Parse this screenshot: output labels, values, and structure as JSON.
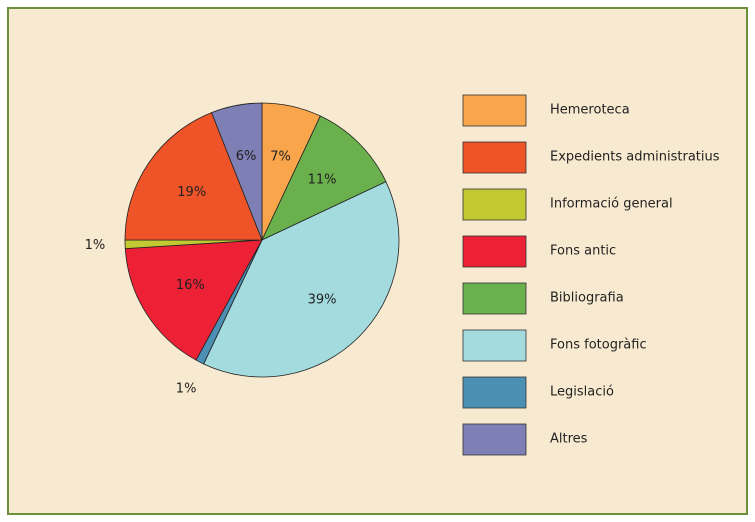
{
  "chart_data": {
    "type": "pie",
    "slices": [
      {
        "value": 7,
        "label": "7%",
        "color": "#f9a54b"
      },
      {
        "value": 11,
        "label": "11%",
        "color": "#6ab04c"
      },
      {
        "value": 39,
        "label": "39%",
        "color": "#a3dbdf"
      },
      {
        "value": 1,
        "label": "1%",
        "color": "#4b8fb3"
      },
      {
        "value": 16,
        "label": "16%",
        "color": "#ed2136"
      },
      {
        "value": 1,
        "label": "1%",
        "color": "#c3c932"
      },
      {
        "value": 19,
        "label": "19%",
        "color": "#ef5429"
      },
      {
        "value": 6,
        "label": "6%",
        "color": "#7d7fb5"
      }
    ],
    "legend": [
      {
        "label": "Hemeroteca",
        "color": "#f9a54b"
      },
      {
        "label": "Expedients administratius",
        "color": "#ef5429"
      },
      {
        "label": "Informació general",
        "color": "#c3c932"
      },
      {
        "label": "Fons antic",
        "color": "#ed2136"
      },
      {
        "label": "Bibliografia",
        "color": "#6ab04c"
      },
      {
        "label": "Fons fotogràfic",
        "color": "#a3dbdf"
      },
      {
        "label": "Legislació",
        "color": "#4b8fb3"
      },
      {
        "label": "Altres",
        "color": "#7d7fb5"
      }
    ]
  }
}
